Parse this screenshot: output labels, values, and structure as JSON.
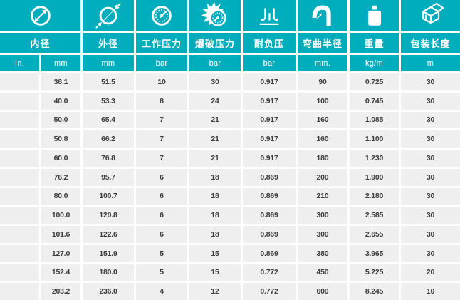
{
  "table": {
    "columns": [
      {
        "label": "内径",
        "icon": "inner-diameter-icon",
        "units": [
          "In.",
          "mm"
        ]
      },
      {
        "label": "外径",
        "icon": "outer-diameter-icon",
        "units": [
          "mm"
        ]
      },
      {
        "label": "工作压力",
        "icon": "pressure-gauge-icon",
        "units": [
          "bar"
        ]
      },
      {
        "label": "爆破压力",
        "icon": "burst-pressure-icon",
        "units": [
          "bar"
        ]
      },
      {
        "label": "耐负压",
        "icon": "vacuum-icon",
        "units": [
          "bar"
        ]
      },
      {
        "label": "弯曲半径",
        "icon": "bend-radius-icon",
        "units": [
          "mm."
        ]
      },
      {
        "label": "重量",
        "icon": "weight-icon",
        "units": [
          "kg/m"
        ]
      },
      {
        "label": "包装长度",
        "icon": "package-box-icon",
        "units": [
          "m"
        ]
      }
    ],
    "units_row": [
      "In.",
      "mm",
      "mm",
      "bar",
      "bar",
      "bar",
      "mm.",
      "kg/m",
      "m"
    ],
    "rows": [
      [
        "",
        "38.1",
        "51.5",
        "10",
        "30",
        "0.917",
        "90",
        "0.725",
        "30"
      ],
      [
        "",
        "40.0",
        "53.3",
        "8",
        "24",
        "0.917",
        "100",
        "0.745",
        "30"
      ],
      [
        "",
        "50.0",
        "65.4",
        "7",
        "21",
        "0.917",
        "160",
        "1.085",
        "30"
      ],
      [
        "",
        "50.8",
        "66.2",
        "7",
        "21",
        "0.917",
        "160",
        "1.100",
        "30"
      ],
      [
        "",
        "60.0",
        "76.8",
        "7",
        "21",
        "0.917",
        "180",
        "1.230",
        "30"
      ],
      [
        "",
        "76.2",
        "95.7",
        "6",
        "18",
        "0.869",
        "200",
        "1.900",
        "30"
      ],
      [
        "",
        "80.0",
        "100.7",
        "6",
        "18",
        "0.869",
        "210",
        "2.180",
        "30"
      ],
      [
        "",
        "100.0",
        "120.8",
        "6",
        "18",
        "0.869",
        "300",
        "2.585",
        "30"
      ],
      [
        "",
        "101.6",
        "122.6",
        "6",
        "18",
        "0.869",
        "300",
        "2.655",
        "30"
      ],
      [
        "",
        "127.0",
        "151.9",
        "5",
        "15",
        "0.869",
        "380",
        "3.965",
        "30"
      ],
      [
        "",
        "152.4",
        "180.0",
        "5",
        "15",
        "0.772",
        "450",
        "5.225",
        "20"
      ],
      [
        "",
        "203.2",
        "236.0",
        "4",
        "12",
        "0.772",
        "600",
        "8.245",
        "10"
      ]
    ],
    "colors": {
      "accent": "#00ADBC",
      "row_bg": "#EFEFEF",
      "cell_text": "#3C3C3C",
      "separator": "#FFFFFF"
    }
  }
}
